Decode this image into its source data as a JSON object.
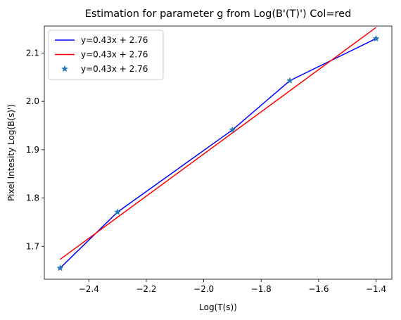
{
  "chart_data": {
    "type": "line",
    "title": "Estimation for parameter g from Log(B'(T)') Col=red",
    "xlabel": "Log(T(s))",
    "ylabel": "Pixel Intesity Log(B(s)')",
    "xlim": [
      -2.555,
      -1.345
    ],
    "ylim": [
      1.632,
      2.156
    ],
    "x_ticks": [
      -2.4,
      -2.2,
      -2.0,
      -1.8,
      -1.6,
      -1.4
    ],
    "y_ticks": [
      1.7,
      1.8,
      1.9,
      2.0,
      2.1
    ],
    "x_tick_labels": [
      "−2.4",
      "−2.2",
      "−2.0",
      "−1.8",
      "−1.6",
      "−1.4"
    ],
    "y_tick_labels": [
      "1.7",
      "1.8",
      "1.9",
      "2.0",
      "2.1"
    ],
    "grid": false,
    "legend_position": "top-left",
    "series": [
      {
        "name": "y=0.43x + 2.76",
        "style": "line",
        "color": "#0000ff",
        "x": [
          -2.5,
          -2.3,
          -1.9,
          -1.7,
          -1.4
        ],
        "y": [
          1.655,
          1.771,
          1.941,
          2.043,
          2.13
        ]
      },
      {
        "name": "y=0.43x + 2.76",
        "style": "line",
        "color": "#ff0000",
        "x": [
          -2.5,
          -1.4
        ],
        "y": [
          1.673,
          2.153
        ]
      },
      {
        "name": "y=0.43x + 2.76",
        "style": "marker",
        "marker": "star",
        "color": "#1f77b4",
        "x": [
          -2.5,
          -2.3,
          -1.9,
          -1.7,
          -1.4
        ],
        "y": [
          1.655,
          1.771,
          1.941,
          2.043,
          2.13
        ]
      }
    ]
  }
}
